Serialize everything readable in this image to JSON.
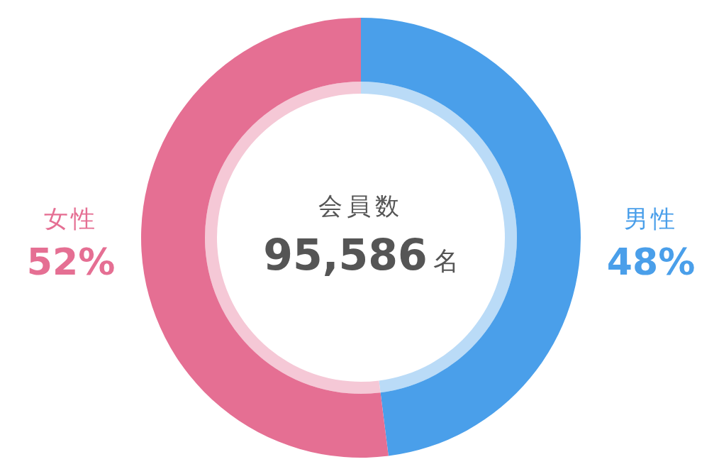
{
  "chart_data": {
    "type": "donut",
    "title": "会員数",
    "subtitle": "95,586名",
    "categories": [
      "男性",
      "女性"
    ],
    "series": [
      {
        "values": [
          48,
          52
        ],
        "colors": [
          "#badbf7",
          "#f5c8d6"
        ]
      },
      {
        "values": [
          48,
          52
        ],
        "colors": [
          "#4a9fea",
          "#e56f93"
        ],
        "value_labels": [
          "48%",
          "52%"
        ]
      }
    ]
  }
}
